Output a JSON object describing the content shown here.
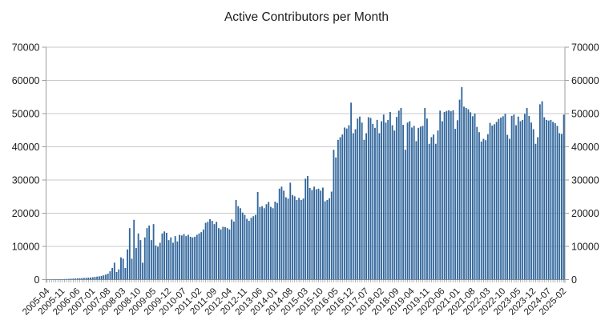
{
  "chart_data": {
    "type": "bar",
    "title": "Active Contributors per Month",
    "xlabel": "",
    "ylabel": "",
    "ylim": [
      0,
      70000
    ],
    "ytick_step": 10000,
    "ytick_labels": [
      "0",
      "10000",
      "20000",
      "30000",
      "40000",
      "50000",
      "60000",
      "70000"
    ],
    "y_axis_sides": [
      "left",
      "right"
    ],
    "grid": true,
    "legend": "none",
    "x_tick_every": 7,
    "x_tick_labels": [
      "2005-04",
      "2005-11",
      "2006-06",
      "2007-01",
      "2007-08",
      "2008-03",
      "2008-10",
      "2009-05",
      "2009-12",
      "2010-07",
      "2011-02",
      "2011-09",
      "2012-04",
      "2012-11",
      "2013-06",
      "2014-01",
      "2014-08",
      "2015-03",
      "2015-10",
      "2016-05",
      "2016-12",
      "2017-07",
      "2018-02",
      "2018-09",
      "2019-04",
      "2019-11",
      "2020-06",
      "2021-01",
      "2021-08",
      "2022-03",
      "2022-10",
      "2023-05",
      "2023-12",
      "2024-07",
      "2025-02"
    ],
    "colors": {
      "bar": "#31669c",
      "grid": "#c9c9c9",
      "axis": "#9e9e9e",
      "text": "#1c1c1c"
    },
    "categories": [
      "2005-04",
      "2005-05",
      "2005-06",
      "2005-07",
      "2005-08",
      "2005-09",
      "2005-10",
      "2005-11",
      "2005-12",
      "2006-01",
      "2006-02",
      "2006-03",
      "2006-04",
      "2006-05",
      "2006-06",
      "2006-07",
      "2006-08",
      "2006-09",
      "2006-10",
      "2006-11",
      "2006-12",
      "2007-01",
      "2007-02",
      "2007-03",
      "2007-04",
      "2007-05",
      "2007-06",
      "2007-07",
      "2007-08",
      "2007-09",
      "2007-10",
      "2007-11",
      "2007-12",
      "2008-01",
      "2008-02",
      "2008-03",
      "2008-04",
      "2008-05",
      "2008-06",
      "2008-07",
      "2008-08",
      "2008-09",
      "2008-10",
      "2008-11",
      "2008-12",
      "2009-01",
      "2009-02",
      "2009-03",
      "2009-04",
      "2009-05",
      "2009-06",
      "2009-07",
      "2009-08",
      "2009-09",
      "2009-10",
      "2009-11",
      "2009-12",
      "2010-01",
      "2010-02",
      "2010-03",
      "2010-04",
      "2010-05",
      "2010-06",
      "2010-07",
      "2010-08",
      "2010-09",
      "2010-10",
      "2010-11",
      "2010-12",
      "2011-01",
      "2011-02",
      "2011-03",
      "2011-04",
      "2011-05",
      "2011-06",
      "2011-07",
      "2011-08",
      "2011-09",
      "2011-10",
      "2011-11",
      "2011-12",
      "2012-01",
      "2012-02",
      "2012-03",
      "2012-04",
      "2012-05",
      "2012-06",
      "2012-07",
      "2012-08",
      "2012-09",
      "2012-10",
      "2012-11",
      "2012-12",
      "2013-01",
      "2013-02",
      "2013-03",
      "2013-04",
      "2013-05",
      "2013-06",
      "2013-07",
      "2013-08",
      "2013-09",
      "2013-10",
      "2013-11",
      "2013-12",
      "2014-01",
      "2014-02",
      "2014-03",
      "2014-04",
      "2014-05",
      "2014-06",
      "2014-07",
      "2014-08",
      "2014-09",
      "2014-10",
      "2014-11",
      "2014-12",
      "2015-01",
      "2015-02",
      "2015-03",
      "2015-04",
      "2015-05",
      "2015-06",
      "2015-07",
      "2015-08",
      "2015-09",
      "2015-10",
      "2015-11",
      "2015-12",
      "2016-01",
      "2016-02",
      "2016-03",
      "2016-04",
      "2016-05",
      "2016-06",
      "2016-07",
      "2016-08",
      "2016-09",
      "2016-10",
      "2016-11",
      "2016-12",
      "2017-01",
      "2017-02",
      "2017-03",
      "2017-04",
      "2017-05",
      "2017-06",
      "2017-07",
      "2017-08",
      "2017-09",
      "2017-10",
      "2017-11",
      "2017-12",
      "2018-01",
      "2018-02",
      "2018-03",
      "2018-04",
      "2018-05",
      "2018-06",
      "2018-07",
      "2018-08",
      "2018-09",
      "2018-10",
      "2018-11",
      "2018-12",
      "2019-01",
      "2019-02",
      "2019-03",
      "2019-04",
      "2019-05",
      "2019-06",
      "2019-07",
      "2019-08",
      "2019-09",
      "2019-10",
      "2019-11",
      "2019-12",
      "2020-01",
      "2020-02",
      "2020-03",
      "2020-04",
      "2020-05",
      "2020-06",
      "2020-07",
      "2020-08",
      "2020-09",
      "2020-10",
      "2020-11",
      "2020-12",
      "2021-01",
      "2021-02",
      "2021-03",
      "2021-04",
      "2021-05",
      "2021-06",
      "2021-07",
      "2021-08",
      "2021-09",
      "2021-10",
      "2021-11",
      "2021-12",
      "2022-01",
      "2022-02",
      "2022-03",
      "2022-04",
      "2022-05",
      "2022-06",
      "2022-07",
      "2022-08",
      "2022-09",
      "2022-10",
      "2022-11",
      "2022-12",
      "2023-01",
      "2023-02",
      "2023-03",
      "2023-04",
      "2023-05",
      "2023-06",
      "2023-07",
      "2023-08",
      "2023-09",
      "2023-10",
      "2023-11",
      "2023-12",
      "2024-01",
      "2024-02",
      "2024-03",
      "2024-04",
      "2024-05",
      "2024-06",
      "2024-07",
      "2024-08",
      "2024-09",
      "2024-10",
      "2024-11",
      "2024-12",
      "2025-01",
      "2025-02"
    ],
    "values": [
      60,
      70,
      80,
      90,
      100,
      110,
      130,
      150,
      170,
      200,
      230,
      270,
      300,
      340,
      380,
      420,
      460,
      500,
      550,
      600,
      650,
      700,
      800,
      900,
      1000,
      1100,
      1300,
      1500,
      1800,
      2500,
      3500,
      5100,
      2300,
      3100,
      6700,
      6300,
      3500,
      9100,
      15500,
      6300,
      18000,
      9500,
      13900,
      11900,
      5100,
      12700,
      15500,
      16300,
      11900,
      16700,
      10300,
      9900,
      11100,
      13900,
      14500,
      14100,
      11900,
      12700,
      11100,
      13100,
      11500,
      13500,
      13300,
      13700,
      13100,
      13500,
      12900,
      12700,
      12900,
      13500,
      13900,
      14300,
      15100,
      17100,
      17400,
      18200,
      17700,
      16700,
      17400,
      15500,
      15100,
      15900,
      15800,
      15500,
      15100,
      18100,
      17500,
      24000,
      22100,
      21500,
      20200,
      19500,
      18300,
      17700,
      18600,
      19100,
      19500,
      26400,
      21900,
      22100,
      21500,
      22700,
      23400,
      21900,
      21500,
      23500,
      23100,
      27400,
      28000,
      26800,
      24800,
      24400,
      29200,
      25500,
      25100,
      24000,
      24600,
      24000,
      24400,
      30400,
      31200,
      27600,
      27000,
      28000,
      27200,
      27400,
      26800,
      27700,
      23600,
      24000,
      24500,
      26500,
      39100,
      36800,
      42100,
      42900,
      43700,
      45800,
      45500,
      46500,
      53300,
      44100,
      45300,
      48500,
      49100,
      47300,
      42100,
      44100,
      48900,
      48700,
      46900,
      45700,
      48100,
      44100,
      47700,
      49700,
      47300,
      48100,
      50500,
      46500,
      44900,
      49000,
      50900,
      51700,
      46600,
      39100,
      47300,
      47700,
      45800,
      46300,
      41700,
      45700,
      46100,
      46300,
      51700,
      48500,
      40900,
      42900,
      43700,
      40900,
      44900,
      50900,
      47700,
      50500,
      50800,
      51000,
      50700,
      51000,
      45400,
      48000,
      54200,
      58000,
      52100,
      51700,
      51300,
      50400,
      49200,
      50000,
      46000,
      44400,
      41600,
      42400,
      42000,
      43800,
      47200,
      46400,
      46800,
      47500,
      48400,
      48800,
      49200,
      49900,
      43600,
      42400,
      49300,
      49700,
      46500,
      49100,
      47700,
      48100,
      49900,
      51700,
      49300,
      47300,
      45300,
      40900,
      42900,
      52800,
      53700,
      48900,
      48100,
      47900,
      48100,
      47500,
      47100,
      46300,
      44100,
      43900,
      49700
    ]
  }
}
